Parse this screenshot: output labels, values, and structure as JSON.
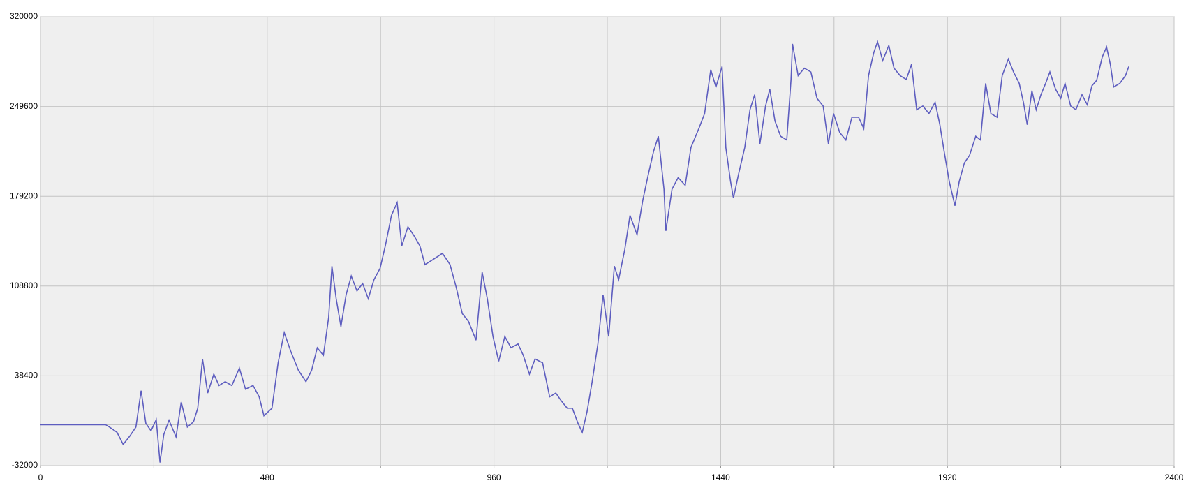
{
  "chart_data": {
    "type": "line",
    "x": [
      0,
      138,
      146,
      162,
      175,
      189,
      202,
      213,
      223,
      234,
      245,
      253,
      261,
      272,
      287,
      298,
      311,
      324,
      333,
      343,
      354,
      367,
      378,
      391,
      405,
      421,
      434,
      450,
      463,
      473,
      490,
      503,
      516,
      530,
      546,
      562,
      574,
      586,
      599,
      610,
      617,
      626,
      636,
      647,
      658,
      670,
      682,
      694,
      706,
      719,
      730,
      743,
      755,
      765,
      778,
      791,
      803,
      814,
      827,
      839,
      851,
      867,
      880,
      893,
      906,
      922,
      935,
      946,
      958,
      970,
      983,
      996,
      1011,
      1022,
      1035,
      1047,
      1063,
      1078,
      1091,
      1102,
      1115,
      1126,
      1138,
      1147,
      1157,
      1168,
      1180,
      1191,
      1203,
      1215,
      1224,
      1237,
      1248,
      1263,
      1275,
      1287,
      1298,
      1308,
      1320,
      1324,
      1337,
      1350,
      1365,
      1377,
      1387,
      1395,
      1406,
      1419,
      1430,
      1443,
      1451,
      1461,
      1467,
      1478,
      1491,
      1502,
      1512,
      1523,
      1535,
      1544,
      1555,
      1567,
      1580,
      1589,
      1592,
      1604,
      1617,
      1631,
      1644,
      1657,
      1668,
      1679,
      1692,
      1705,
      1718,
      1732,
      1743,
      1753,
      1764,
      1772,
      1783,
      1796,
      1807,
      1820,
      1833,
      1844,
      1855,
      1868,
      1881,
      1894,
      1904,
      1913,
      1924,
      1936,
      1945,
      1956,
      1967,
      1980,
      1990,
      2001,
      2012,
      2025,
      2036,
      2049,
      2060,
      2072,
      2081,
      2089,
      2099,
      2108,
      2118,
      2128,
      2137,
      2149,
      2160,
      2169,
      2181,
      2192,
      2205,
      2216,
      2226,
      2236,
      2248,
      2257,
      2265,
      2272,
      2285,
      2297,
      2304
    ],
    "series": [
      {
        "color": "#5d5dbf",
        "values": [
          0,
          0,
          -1800,
          -5900,
          -15400,
          -8900,
          -1800,
          26700,
          1200,
          -4700,
          4100,
          -29600,
          -7700,
          3600,
          -9500,
          17800,
          -1800,
          2400,
          13000,
          51600,
          24900,
          39700,
          30800,
          33800,
          30800,
          44400,
          27900,
          30800,
          21900,
          7100,
          13000,
          48600,
          72300,
          57500,
          42700,
          33800,
          42700,
          60400,
          54500,
          84100,
          124400,
          98900,
          77000,
          101900,
          116700,
          104900,
          110800,
          98900,
          113800,
          122700,
          140400,
          164200,
          174200,
          140400,
          155300,
          148200,
          140400,
          125600,
          128600,
          131500,
          134500,
          125600,
          107800,
          87100,
          81100,
          66400,
          119700,
          98900,
          69300,
          49800,
          69300,
          60400,
          63400,
          54500,
          39700,
          51600,
          48600,
          21900,
          24900,
          19000,
          13000,
          13000,
          1200,
          -5900,
          10100,
          33800,
          63400,
          101900,
          69300,
          124400,
          113800,
          137400,
          164200,
          149100,
          176000,
          196800,
          214500,
          226300,
          184800,
          152100,
          184800,
          193800,
          187800,
          217400,
          226300,
          233500,
          244100,
          278500,
          264900,
          280900,
          217400,
          190700,
          177800,
          196800,
          217400,
          247100,
          258900,
          220400,
          250000,
          263100,
          238200,
          226300,
          223400,
          270800,
          298700,
          273800,
          279700,
          276700,
          256000,
          250000,
          220400,
          244100,
          229300,
          223400,
          241200,
          241200,
          232300,
          273800,
          291600,
          300400,
          285600,
          297500,
          279700,
          273800,
          270800,
          282700,
          247100,
          250000,
          244100,
          253000,
          235300,
          214500,
          190700,
          171800,
          190700,
          205500,
          211400,
          226300,
          223400,
          267800,
          244100,
          241200,
          273800,
          286800,
          276700,
          267800,
          253000,
          235300,
          262000,
          247100,
          258900,
          267800,
          276700,
          263100,
          256000,
          267800,
          250000,
          247100,
          258900,
          251100,
          265900,
          270100,
          288600,
          296300,
          282700,
          264900,
          267800,
          273800,
          280900
        ]
      }
    ],
    "xlim": [
      0,
      2400
    ],
    "xticks": [
      0,
      480,
      960,
      1440,
      1920,
      2400
    ],
    "ylim": [
      -32000,
      320000
    ],
    "yticks": [
      -32000,
      38400,
      108800,
      179200,
      249600,
      320000
    ],
    "grid": true,
    "x_minor_grid": true,
    "zero_line": true
  }
}
